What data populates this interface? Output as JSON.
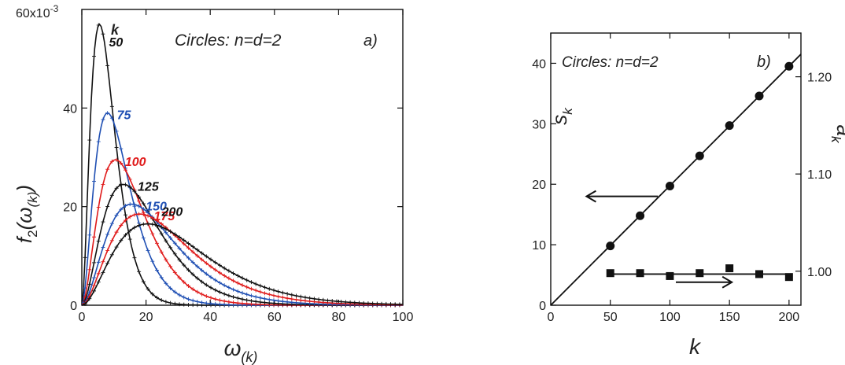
{
  "chart_data": [
    {
      "type": "line",
      "panel_label": "a)",
      "annotation": "Circles: n=d=2",
      "legend_header": "k",
      "xlabel": "ω",
      "xlabel_sub": "(k)",
      "ylabel_main": "f",
      "ylabel_sub": "2",
      "ylabel_arg": "(ω",
      "ylabel_arg_sub": "(k)",
      "ylabel_close": ")",
      "y_scale_label": "60x10",
      "y_scale_exp": "-3",
      "xlim": [
        0,
        100
      ],
      "ylim": [
        0,
        0.06
      ],
      "x_ticks": [
        0,
        20,
        40,
        60,
        80,
        100
      ],
      "x_tick_labels": [
        "0",
        "20",
        "40",
        "60",
        "80",
        "100"
      ],
      "y_ticks": [
        0,
        0.02,
        0.04
      ],
      "y_tick_labels": [
        "0",
        "20",
        "40"
      ],
      "series": [
        {
          "name": "50",
          "k": 50,
          "color": "#111111",
          "peak_x": 5.5,
          "peak_y": 0.057
        },
        {
          "name": "75",
          "k": 75,
          "color": "#1f4fb3",
          "peak_x": 8.0,
          "peak_y": 0.039
        },
        {
          "name": "100",
          "k": 100,
          "color": "#e01b1b",
          "peak_x": 10.5,
          "peak_y": 0.0295
        },
        {
          "name": "125",
          "k": 125,
          "color": "#111111",
          "peak_x": 13.0,
          "peak_y": 0.0245
        },
        {
          "name": "150",
          "k": 150,
          "color": "#1f4fb3",
          "peak_x": 15.5,
          "peak_y": 0.0205
        },
        {
          "name": "175",
          "k": 175,
          "color": "#e01b1b",
          "peak_x": 18.0,
          "peak_y": 0.0185
        },
        {
          "name": "200",
          "k": 200,
          "color": "#111111",
          "peak_x": 20.5,
          "peak_y": 0.0165
        }
      ]
    },
    {
      "type": "scatter",
      "panel_label": "b)",
      "annotation": "Circles: n=d=2",
      "xlabel": "k",
      "ylabel_left": "s",
      "ylabel_left_sub": "k",
      "ylabel_right": "a",
      "ylabel_right_sub": "k",
      "xlim": [
        0,
        210
      ],
      "ylim_left": [
        0,
        45
      ],
      "ylim_right": [
        0.965,
        1.245
      ],
      "x_ticks": [
        0,
        50,
        100,
        150,
        200
      ],
      "y_left_ticks": [
        0,
        10,
        20,
        30,
        40
      ],
      "y_right_ticks": [
        1.0,
        1.1,
        1.2
      ],
      "y_right_tick_labels": [
        "1.00",
        "1.10",
        "1.20"
      ],
      "series": [
        {
          "name": "s_k",
          "axis": "left",
          "marker": "circle",
          "x": [
            50,
            75,
            100,
            125,
            150,
            175,
            200
          ],
          "y": [
            9.8,
            14.8,
            19.7,
            24.7,
            29.7,
            34.6,
            39.5
          ]
        },
        {
          "name": "a_k",
          "axis": "right",
          "marker": "square",
          "x": [
            50,
            75,
            100,
            125,
            150,
            175,
            200
          ],
          "y": [
            0.998,
            0.998,
            0.995,
            0.998,
            1.003,
            0.997,
            0.994
          ]
        }
      ],
      "fit_line": {
        "x": [
          0,
          210
        ],
        "y": [
          0,
          41.5
        ]
      },
      "ak_line": {
        "x": [
          50,
          200
        ],
        "y": [
          0.997,
          0.997
        ]
      }
    }
  ]
}
